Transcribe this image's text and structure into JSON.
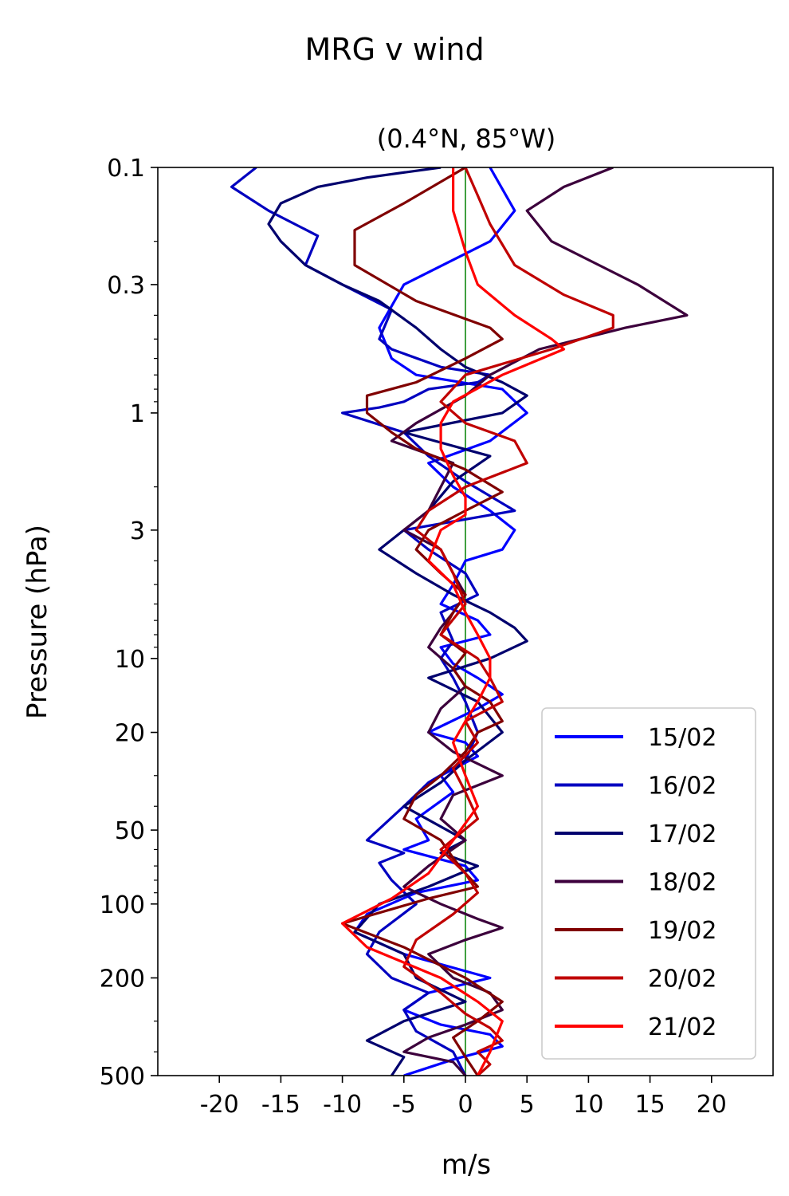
{
  "chart_data": {
    "type": "line",
    "suptitle": "MRG v wind",
    "title": "(0.4°N, 85°W)",
    "xlabel": "m/s",
    "ylabel": "Pressure (hPa)",
    "xlim": [
      -25,
      25
    ],
    "ylim": [
      500,
      0.1
    ],
    "yscale": "log",
    "y_inverted": true,
    "xticks": [
      -20,
      -15,
      -10,
      -5,
      0,
      5,
      10,
      15,
      20
    ],
    "xtick_labels": [
      "-20",
      "-15",
      "-10",
      "-5",
      "0",
      "5",
      "10",
      "15",
      "20"
    ],
    "yticks": [
      0.1,
      0.3,
      1,
      3,
      10,
      20,
      50,
      100,
      200,
      500
    ],
    "ytick_labels": [
      "0.1",
      "0.3",
      "1",
      "3",
      "10",
      "20",
      "50",
      "100",
      "200",
      "500"
    ],
    "zero_line_color": "#008000",
    "grid": false,
    "legend_position": "lower right",
    "series": [
      {
        "name": "15/02",
        "color": "#0000ff",
        "x": [
          2,
          4,
          2,
          -5,
          -7,
          -6,
          -4,
          3,
          5,
          2,
          -3,
          -1,
          2,
          4,
          3,
          0,
          -1,
          -2,
          1,
          2,
          -2,
          -1,
          1,
          3,
          1,
          -3,
          0,
          1,
          -2,
          -1,
          -4,
          -3,
          -5,
          0,
          1,
          -4,
          -8,
          -9,
          -5,
          2,
          -3,
          -5,
          -2,
          2,
          3,
          -1,
          -5
        ],
        "y": [
          0.1,
          0.15,
          0.2,
          0.3,
          0.45,
          0.6,
          0.7,
          0.8,
          1.0,
          1.3,
          1.6,
          2.0,
          2.5,
          3.0,
          3.6,
          4.0,
          5.0,
          6.0,
          7.0,
          8.0,
          9.0,
          10.5,
          12,
          14,
          16,
          20,
          22,
          25,
          30,
          35,
          45,
          55,
          60,
          70,
          80,
          90,
          110,
          130,
          160,
          200,
          230,
          270,
          310,
          340,
          380,
          430,
          500
        ]
      },
      {
        "name": "16/02",
        "color": "#0000c0",
        "x": [
          -17,
          -19,
          -16,
          -12,
          -13,
          -10,
          -6,
          -7,
          -6,
          -2,
          2,
          1,
          -3,
          -5,
          -7,
          -10,
          -5,
          -3,
          0,
          4,
          -5,
          -3,
          0,
          1,
          -2,
          -1,
          -2,
          -1,
          0,
          1,
          0,
          -3,
          -5,
          -8,
          -5,
          -7,
          -6,
          -4,
          -7,
          -8,
          -6,
          -3,
          -5,
          -4,
          -1,
          0
        ],
        "y": [
          0.1,
          0.12,
          0.15,
          0.19,
          0.25,
          0.3,
          0.38,
          0.5,
          0.55,
          0.65,
          0.7,
          0.75,
          0.8,
          0.9,
          0.95,
          1.0,
          1.2,
          1.5,
          1.9,
          2.5,
          3.0,
          3.6,
          4.5,
          5.5,
          6.5,
          8.5,
          10,
          12,
          15,
          20,
          26,
          32,
          40,
          55,
          62,
          68,
          80,
          100,
          130,
          160,
          200,
          230,
          270,
          330,
          400,
          500
        ]
      },
      {
        "name": "17/02",
        "color": "#00006e",
        "x": [
          -2,
          -8,
          -12,
          -15,
          -16,
          -15,
          -13,
          -10,
          -7,
          -4,
          -2,
          0,
          3,
          5,
          3,
          -5,
          2,
          -1,
          -3,
          -5,
          -7,
          -4,
          -1,
          2,
          4,
          5,
          2,
          -3,
          1,
          3,
          0,
          -2,
          -5,
          0,
          -2,
          1,
          -3,
          -7,
          -9,
          -5,
          -4,
          0,
          -5,
          -8,
          -5,
          -6
        ],
        "y": [
          0.1,
          0.11,
          0.12,
          0.14,
          0.17,
          0.2,
          0.25,
          0.3,
          0.35,
          0.45,
          0.55,
          0.65,
          0.75,
          0.85,
          1.0,
          1.2,
          1.5,
          1.9,
          2.5,
          3.0,
          3.6,
          4.5,
          5.5,
          6.5,
          7.5,
          8.5,
          10,
          12,
          15,
          20,
          26,
          32,
          40,
          55,
          62,
          70,
          85,
          100,
          130,
          160,
          200,
          250,
          300,
          360,
          420,
          500
        ]
      },
      {
        "name": "18/02",
        "color": "#3c003c",
        "x": [
          12,
          8,
          5,
          7,
          14,
          18,
          13,
          6,
          2,
          0,
          -4,
          -6,
          -1,
          -2,
          -3,
          -5,
          -2,
          -1,
          0,
          -1,
          -2,
          -3,
          -1,
          0,
          -2,
          -3,
          -1,
          3,
          -1,
          -2,
          0,
          -3,
          -5,
          -2,
          1,
          3,
          0,
          -3,
          -1,
          2,
          3,
          0,
          -3,
          -5,
          -1,
          0
        ],
        "y": [
          0.1,
          0.12,
          0.15,
          0.2,
          0.3,
          0.4,
          0.45,
          0.55,
          0.7,
          0.85,
          1.1,
          1.3,
          1.6,
          2.0,
          2.5,
          3.0,
          3.6,
          4.5,
          5.5,
          6.5,
          7.5,
          9.0,
          11,
          13,
          16,
          20,
          24,
          30,
          36,
          45,
          55,
          70,
          85,
          100,
          115,
          125,
          140,
          160,
          200,
          230,
          270,
          310,
          350,
          400,
          440,
          500
        ]
      },
      {
        "name": "19/02",
        "color": "#800000",
        "x": [
          0,
          -5,
          -9,
          -9,
          -4,
          2,
          3,
          0,
          -4,
          -8,
          -8,
          -6,
          -4,
          0,
          3,
          0,
          -3,
          -4,
          -2,
          0,
          -1,
          -2,
          0,
          -1,
          0,
          2,
          3,
          1,
          0,
          -2,
          -4,
          -5,
          -2,
          -1,
          0,
          1,
          -3,
          -6,
          -10,
          -5,
          0,
          3,
          1,
          -1,
          0,
          1
        ],
        "y": [
          0.1,
          0.14,
          0.18,
          0.25,
          0.35,
          0.45,
          0.5,
          0.6,
          0.75,
          0.85,
          1.0,
          1.2,
          1.4,
          1.7,
          2.1,
          2.5,
          3.0,
          3.6,
          4.5,
          5.5,
          6.5,
          8.0,
          9.5,
          11,
          13,
          15,
          18,
          20,
          24,
          30,
          36,
          45,
          55,
          65,
          75,
          85,
          95,
          105,
          120,
          150,
          200,
          250,
          300,
          350,
          420,
          500
        ]
      },
      {
        "name": "20/02",
        "color": "#c00000",
        "x": [
          0,
          1,
          2,
          4,
          8,
          12,
          12,
          7,
          0,
          -2,
          0,
          4,
          5,
          0,
          -3,
          -4,
          -2,
          -1,
          0,
          -2,
          1,
          2,
          3,
          0,
          1,
          -1,
          0,
          1,
          -2,
          0,
          1,
          -1,
          -4,
          -5,
          -2,
          0,
          2,
          3,
          1,
          2,
          1
        ],
        "y": [
          0.1,
          0.13,
          0.17,
          0.25,
          0.33,
          0.4,
          0.45,
          0.55,
          0.7,
          0.9,
          1.1,
          1.3,
          1.6,
          2.0,
          2.5,
          3.0,
          3.6,
          4.5,
          6.0,
          8.0,
          10,
          12,
          15,
          18,
          22,
          28,
          35,
          45,
          60,
          75,
          90,
          110,
          140,
          180,
          230,
          280,
          320,
          360,
          400,
          450,
          500
        ]
      },
      {
        "name": "21/02",
        "color": "#ff0000",
        "x": [
          -1,
          -1,
          0,
          1,
          4,
          7,
          8,
          3,
          -1,
          -2,
          -2,
          -1,
          0,
          0,
          -2,
          -3,
          -1,
          0,
          1,
          2,
          2,
          1,
          0,
          -1,
          0,
          1,
          -1,
          -3,
          -6,
          -10,
          -8,
          -2,
          1,
          3,
          2,
          1
        ],
        "y": [
          0.1,
          0.15,
          0.22,
          0.3,
          0.4,
          0.5,
          0.55,
          0.7,
          0.9,
          1.1,
          1.4,
          1.8,
          2.2,
          2.6,
          3.0,
          4.0,
          5.0,
          6.5,
          8.0,
          10,
          12,
          15,
          18,
          22,
          30,
          40,
          55,
          75,
          95,
          120,
          150,
          200,
          250,
          300,
          400,
          500
        ]
      }
    ]
  }
}
